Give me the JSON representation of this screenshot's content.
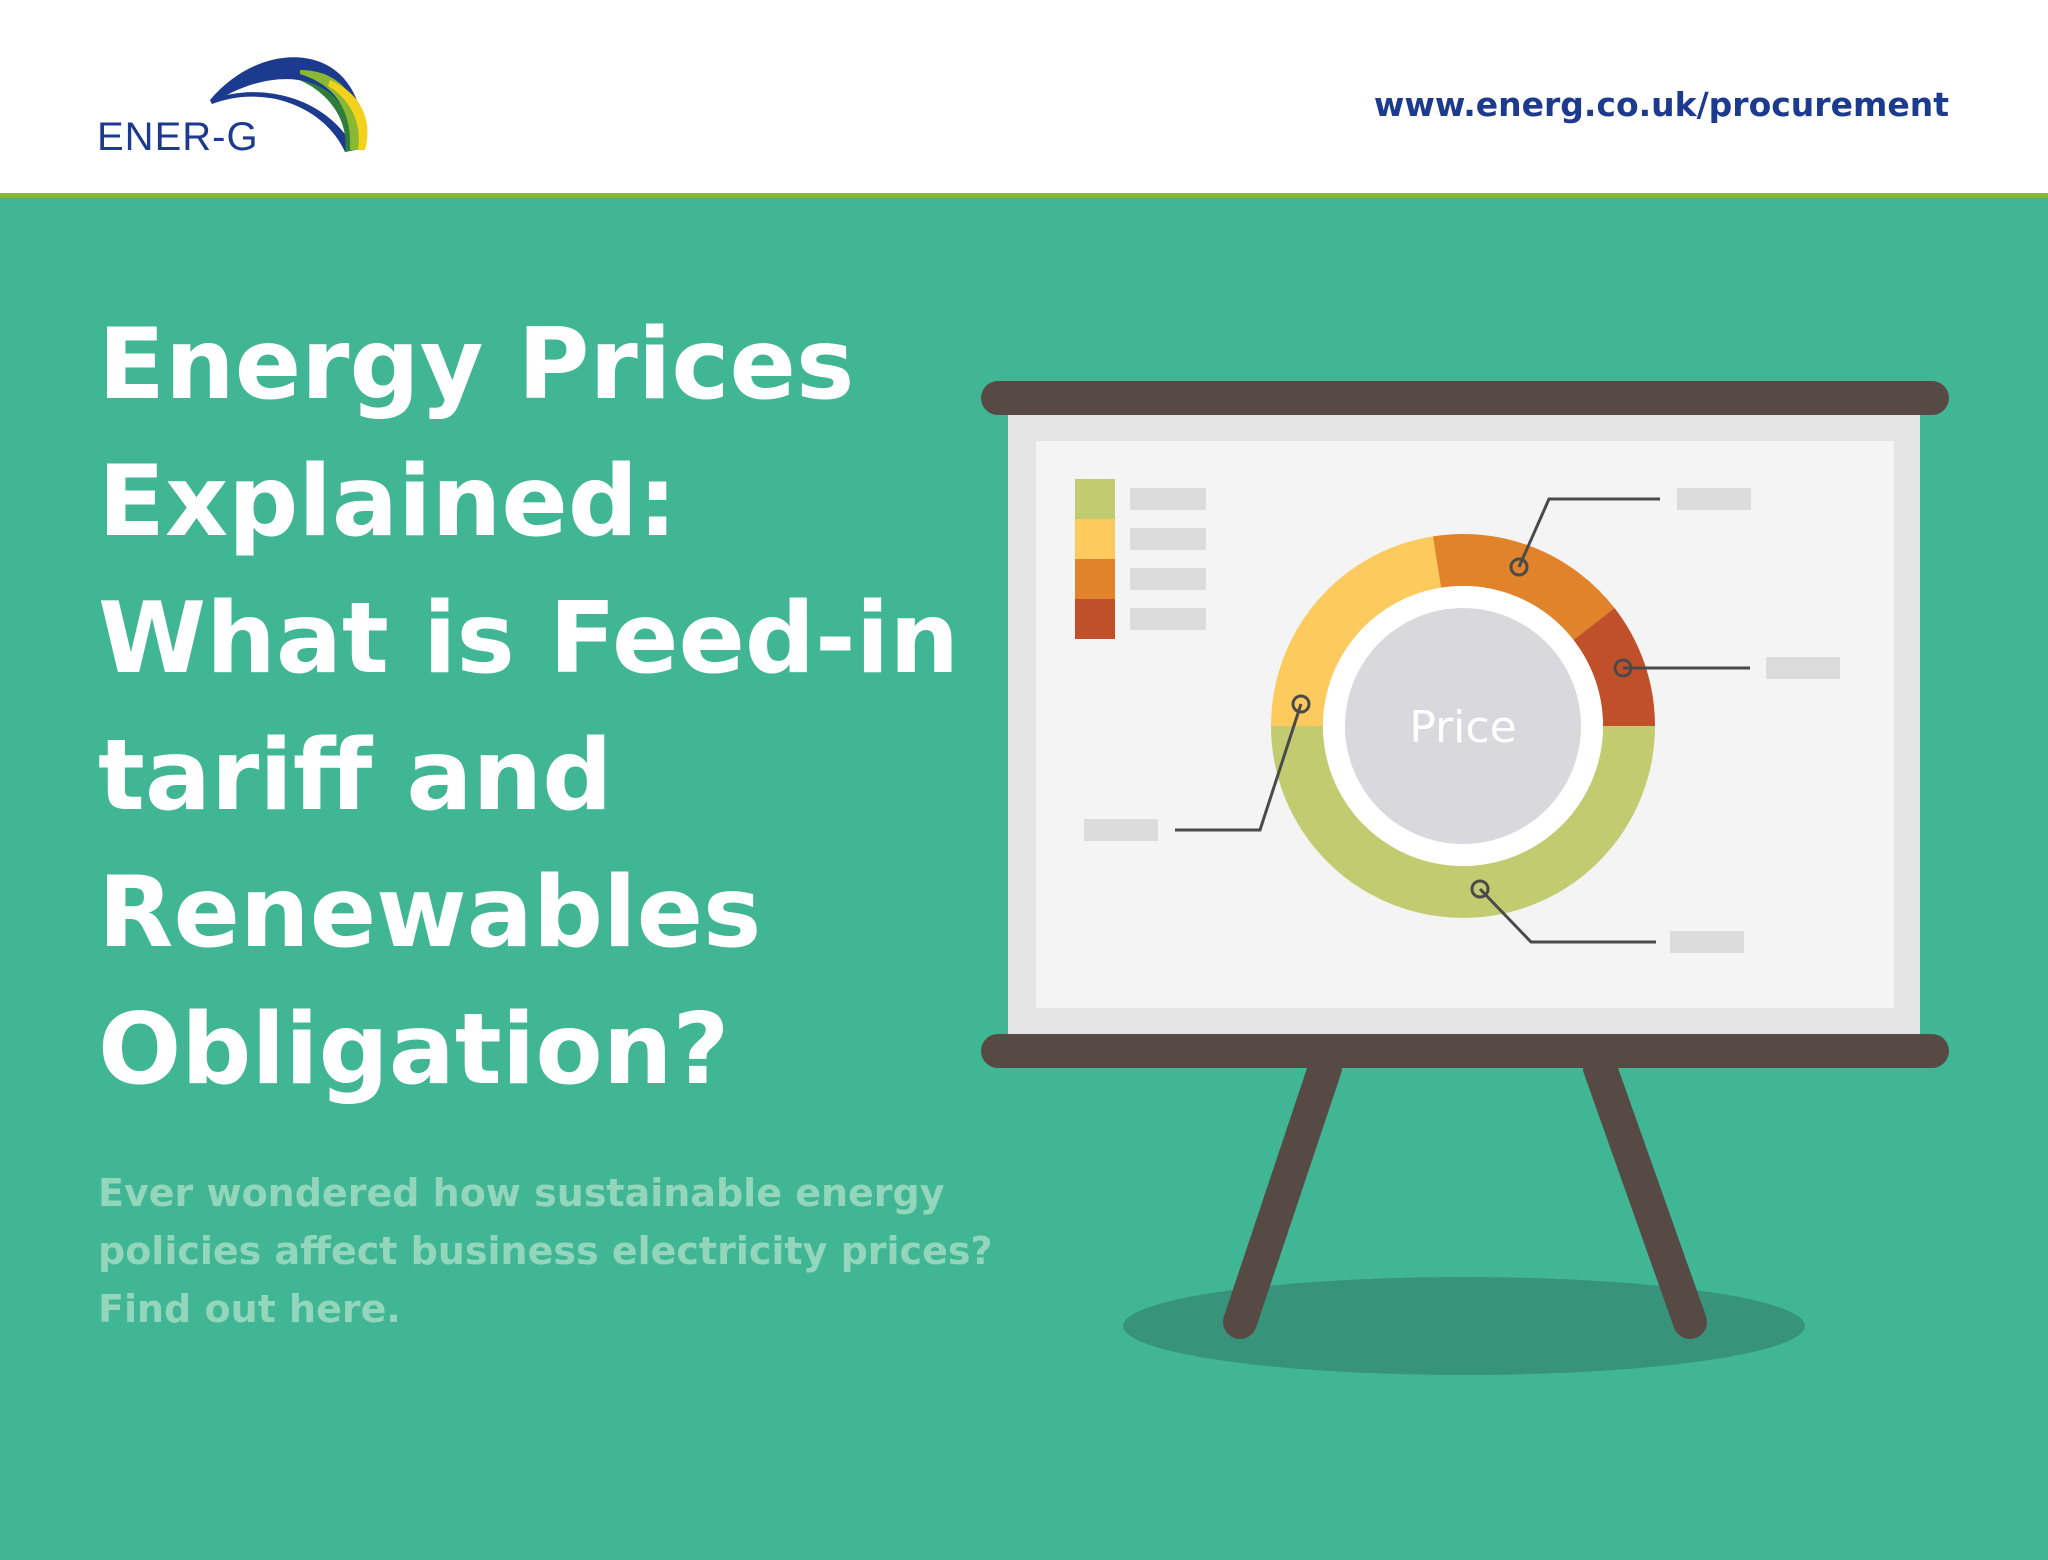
{
  "header": {
    "logo": "ENER-G",
    "url": "www.energ.co.uk/procurement"
  },
  "title_lines": [
    "Energy Prices",
    "Explained:",
    "What is Feed-in",
    "tariff and",
    "Renewables",
    "Obligation?"
  ],
  "subtitle_lines": [
    "Ever wondered how sustainable energy",
    "policies affect business electricity prices?",
    "Find out here."
  ],
  "illustration": {
    "center_label": "Price"
  }
}
